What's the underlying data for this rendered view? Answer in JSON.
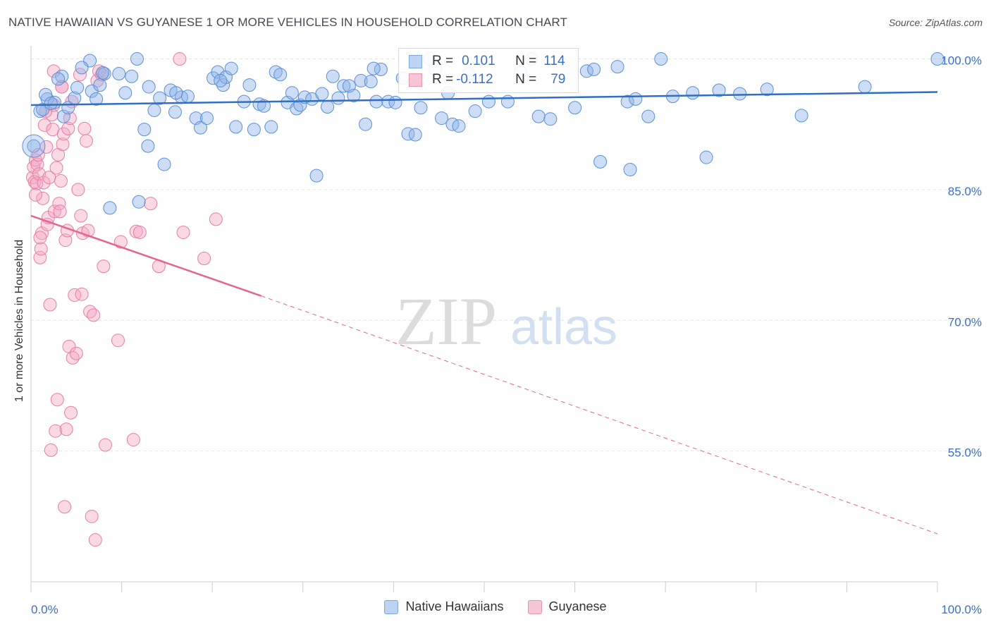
{
  "chart_data": {
    "type": "scatter",
    "title": "NATIVE HAWAIIAN VS GUYANESE 1 OR MORE VEHICLES IN HOUSEHOLD CORRELATION CHART",
    "source": "Source: ZipAtlas.com",
    "xlabel": "",
    "ylabel": "1 or more Vehicles in Household",
    "xlim": [
      0,
      100
    ],
    "ylim": [
      40,
      101.5
    ],
    "x_tick_labels": [
      "0.0%",
      "100.0%"
    ],
    "y_ticks": [
      55,
      70,
      85,
      100
    ],
    "y_tick_labels": [
      "55.0%",
      "70.0%",
      "85.0%",
      "100.0%"
    ],
    "grid": true,
    "watermark": {
      "zip": "ZIP",
      "atlas": "atlas"
    },
    "stats": [
      {
        "r_label": "R =",
        "r": "0.101",
        "n_label": "N =",
        "n": "114"
      },
      {
        "r_label": "R =",
        "r": "-0.112",
        "n_label": "N =",
        "n": "79"
      }
    ],
    "series": [
      {
        "name": "Native Hawaiians",
        "color": "#8db3e8",
        "edge": "#5b8fd6",
        "line_color": "#2f6fc4",
        "trend": {
          "x0": 0,
          "y0": 94.7,
          "x1": 100,
          "y1": 96.2
        },
        "points": [
          [
            0.3,
            90.0
          ],
          [
            1.0,
            94.0
          ],
          [
            1.3,
            94.2
          ],
          [
            1.8,
            95.4
          ],
          [
            2.6,
            95.0
          ],
          [
            3.4,
            98.0
          ],
          [
            3.6,
            93.4
          ],
          [
            4.1,
            94.4
          ],
          [
            4.8,
            95.5
          ],
          [
            5.1,
            96.7
          ],
          [
            6.5,
            99.8
          ],
          [
            6.7,
            96.3
          ],
          [
            7.2,
            95.4
          ],
          [
            7.6,
            97.0
          ],
          [
            8.1,
            98.3
          ],
          [
            8.7,
            82.9
          ],
          [
            9.7,
            98.3
          ],
          [
            10.4,
            96.1
          ],
          [
            11.1,
            98.0
          ],
          [
            11.7,
            100.0
          ],
          [
            12.5,
            91.9
          ],
          [
            12.9,
            90.0
          ],
          [
            13.6,
            94.1
          ],
          [
            14.2,
            95.5
          ],
          [
            14.7,
            87.9
          ],
          [
            15.4,
            96.4
          ],
          [
            15.9,
            93.9
          ],
          [
            16.6,
            95.6
          ],
          [
            17.3,
            95.7
          ],
          [
            18.2,
            93.2
          ],
          [
            18.7,
            92.1
          ],
          [
            19.4,
            93.2
          ],
          [
            20.1,
            97.8
          ],
          [
            20.6,
            98.5
          ],
          [
            21.2,
            97.0
          ],
          [
            21.5,
            97.9
          ],
          [
            22.1,
            98.9
          ],
          [
            22.6,
            92.2
          ],
          [
            23.5,
            95.1
          ],
          [
            24.1,
            97.0
          ],
          [
            24.6,
            91.9
          ],
          [
            25.2,
            94.8
          ],
          [
            25.7,
            94.6
          ],
          [
            26.5,
            92.2
          ],
          [
            27.0,
            98.5
          ],
          [
            27.5,
            98.2
          ],
          [
            28.3,
            95.0
          ],
          [
            28.8,
            96.1
          ],
          [
            29.3,
            94.3
          ],
          [
            29.7,
            94.7
          ],
          [
            30.2,
            95.6
          ],
          [
            31.0,
            95.4
          ],
          [
            31.5,
            86.6
          ],
          [
            32.1,
            96.0
          ],
          [
            32.7,
            94.5
          ],
          [
            33.3,
            98.0
          ],
          [
            33.9,
            95.5
          ],
          [
            34.5,
            96.9
          ],
          [
            35.1,
            96.9
          ],
          [
            35.6,
            95.8
          ],
          [
            36.4,
            97.5
          ],
          [
            36.9,
            92.5
          ],
          [
            37.5,
            97.4
          ],
          [
            38.1,
            95.1
          ],
          [
            38.6,
            98.8
          ],
          [
            39.4,
            95.1
          ],
          [
            40.2,
            95.0
          ],
          [
            41.0,
            97.8
          ],
          [
            41.6,
            91.4
          ],
          [
            42.4,
            91.3
          ],
          [
            43.0,
            94.4
          ],
          [
            44.0,
            100.0
          ],
          [
            44.6,
            98.8
          ],
          [
            45.3,
            93.2
          ],
          [
            46.0,
            96.1
          ],
          [
            46.5,
            92.5
          ],
          [
            47.2,
            92.3
          ],
          [
            48.3,
            98.3
          ],
          [
            49.0,
            94.0
          ],
          [
            50.5,
            95.1
          ],
          [
            52.6,
            95.1
          ],
          [
            54.0,
            98.5
          ],
          [
            55.2,
            100.0
          ],
          [
            56.0,
            93.4
          ],
          [
            57.3,
            93.1
          ],
          [
            60.0,
            94.4
          ],
          [
            61.3,
            98.6
          ],
          [
            62.1,
            98.8
          ],
          [
            62.8,
            88.2
          ],
          [
            64.7,
            99.1
          ],
          [
            65.8,
            95.1
          ],
          [
            66.1,
            87.3
          ],
          [
            66.7,
            95.4
          ],
          [
            68.1,
            93.4
          ],
          [
            69.5,
            100.0
          ],
          [
            70.8,
            95.7
          ],
          [
            73.0,
            96.1
          ],
          [
            74.5,
            88.7
          ],
          [
            75.9,
            96.4
          ],
          [
            78.2,
            96.0
          ],
          [
            81.2,
            96.5
          ],
          [
            85.0,
            93.5
          ],
          [
            92.0,
            96.8
          ],
          [
            100.0,
            100.0
          ],
          [
            1.6,
            95.9
          ],
          [
            2.2,
            94.9
          ],
          [
            3.0,
            97.7
          ],
          [
            5.6,
            99.0
          ],
          [
            7.9,
            98.4
          ],
          [
            11.9,
            83.6
          ],
          [
            13.0,
            96.8
          ],
          [
            16.0,
            96.1
          ],
          [
            20.9,
            97.5
          ],
          [
            37.8,
            98.9
          ]
        ]
      },
      {
        "name": "Guyanese",
        "color": "#f4a9c3",
        "edge": "#e77fa4",
        "line_color": "#e56592",
        "trend": {
          "x0": 0,
          "y0": 82.0,
          "x1": 25.4,
          "y1": 72.8
        },
        "trend_dashed": {
          "x0": 25.4,
          "y0": 72.8,
          "x1": 100,
          "y1": 45.5
        },
        "points": [
          [
            0.2,
            86.4
          ],
          [
            0.3,
            87.6
          ],
          [
            0.4,
            85.9
          ],
          [
            0.5,
            88.4
          ],
          [
            0.6,
            85.7
          ],
          [
            0.7,
            87.9
          ],
          [
            0.8,
            89.0
          ],
          [
            0.9,
            86.8
          ],
          [
            1.0,
            77.2
          ],
          [
            1.1,
            78.2
          ],
          [
            1.2,
            80.0
          ],
          [
            1.3,
            84.0
          ],
          [
            1.4,
            85.8
          ],
          [
            1.5,
            92.4
          ],
          [
            1.7,
            89.9
          ],
          [
            1.8,
            81.0
          ],
          [
            1.9,
            81.8
          ],
          [
            2.0,
            86.4
          ],
          [
            2.1,
            71.8
          ],
          [
            2.2,
            55.1
          ],
          [
            2.3,
            93.6
          ],
          [
            2.4,
            91.9
          ],
          [
            2.5,
            94.7
          ],
          [
            2.6,
            82.5
          ],
          [
            2.7,
            57.3
          ],
          [
            2.8,
            87.5
          ],
          [
            2.9,
            60.9
          ],
          [
            3.0,
            89.0
          ],
          [
            3.1,
            83.4
          ],
          [
            3.2,
            82.5
          ],
          [
            3.3,
            86.0
          ],
          [
            3.4,
            96.8
          ],
          [
            3.5,
            90.2
          ],
          [
            3.6,
            91.4
          ],
          [
            3.7,
            48.6
          ],
          [
            3.8,
            79.2
          ],
          [
            3.9,
            57.5
          ],
          [
            4.0,
            80.3
          ],
          [
            4.1,
            92.0
          ],
          [
            4.2,
            67.0
          ],
          [
            4.3,
            93.2
          ],
          [
            4.4,
            59.4
          ],
          [
            4.5,
            95.1
          ],
          [
            4.6,
            65.7
          ],
          [
            4.8,
            72.9
          ],
          [
            5.0,
            66.2
          ],
          [
            5.2,
            85.0
          ],
          [
            5.4,
            98.2
          ],
          [
            5.5,
            82.0
          ],
          [
            5.6,
            73.0
          ],
          [
            5.7,
            80.0
          ],
          [
            5.9,
            92.0
          ],
          [
            6.1,
            90.6
          ],
          [
            6.3,
            80.3
          ],
          [
            6.5,
            71.0
          ],
          [
            6.7,
            47.5
          ],
          [
            6.9,
            70.6
          ],
          [
            7.1,
            44.8
          ],
          [
            7.3,
            97.5
          ],
          [
            7.5,
            98.6
          ],
          [
            7.8,
            98.2
          ],
          [
            8.0,
            76.2
          ],
          [
            8.2,
            55.7
          ],
          [
            9.6,
            67.7
          ],
          [
            9.9,
            79.0
          ],
          [
            11.3,
            56.3
          ],
          [
            11.6,
            80.2
          ],
          [
            12.0,
            80.1
          ],
          [
            13.2,
            83.4
          ],
          [
            14.1,
            76.2
          ],
          [
            16.4,
            100.0
          ],
          [
            16.8,
            80.1
          ],
          [
            19.1,
            77.1
          ],
          [
            20.4,
            81.6
          ],
          [
            1.6,
            94.0
          ],
          [
            2.5,
            98.6
          ],
          [
            0.5,
            84.4
          ],
          [
            1.0,
            79.5
          ],
          [
            3.4,
            96.8
          ]
        ]
      }
    ]
  }
}
